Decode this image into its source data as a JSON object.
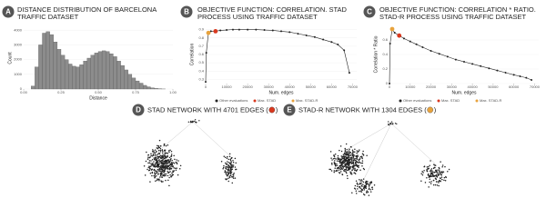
{
  "chart_data": [
    {
      "type": "histogram",
      "panel": "A",
      "title": [
        "DISTANCE DISTRIBUTION OF BARCELONA",
        "TRAFFIC DATASET"
      ],
      "x_label": "Distance",
      "y_label": "Count",
      "color": "#8c8c8c",
      "bins": [
        0.05,
        0.075,
        0.1,
        0.125,
        0.15,
        0.175,
        0.2,
        0.225,
        0.25,
        0.275,
        0.3,
        0.325,
        0.35,
        0.375,
        0.4,
        0.425,
        0.45,
        0.475,
        0.5,
        0.525,
        0.55,
        0.575,
        0.6,
        0.625,
        0.65,
        0.675,
        0.7,
        0.725,
        0.75,
        0.775,
        0.8,
        0.825,
        0.85,
        0.875,
        0.9,
        0.925,
        0.95
      ],
      "values": [
        200,
        1500,
        3000,
        3800,
        3900,
        3700,
        3200,
        2700,
        2300,
        2000,
        1700,
        1550,
        1500,
        1650,
        1900,
        2100,
        2300,
        2450,
        2550,
        2600,
        2550,
        2400,
        2200,
        1900,
        1600,
        1300,
        1000,
        750,
        550,
        400,
        250,
        150,
        80,
        40,
        15,
        5
      ],
      "xlim": [
        0,
        1
      ],
      "xticks": [
        {
          "value": 0,
          "label": "0.00"
        },
        {
          "value": 0.25,
          "label": "0.25"
        },
        {
          "value": 0.5,
          "label": "0.50"
        },
        {
          "value": 0.75,
          "label": "0.75"
        },
        {
          "value": 1,
          "label": "1.00"
        }
      ],
      "ylim": [
        0,
        4200
      ],
      "yticks": [
        0,
        1000,
        2000,
        3000,
        4000
      ]
    },
    {
      "type": "line",
      "panel": "B",
      "title": [
        "OBJECTIVE FUNCTION: CORRELATION. STAD",
        "PROCESS USING TRAFFIC DATASET"
      ],
      "x_label": "Num. edges",
      "y_label": "Correlation",
      "series": [
        {
          "name": "Other evaluations",
          "color": "#222222",
          "x": [
            0,
            300,
            1304,
            2500,
            4701,
            7000,
            10000,
            13000,
            16000,
            20000,
            24000,
            28000,
            32000,
            36000,
            40000,
            44000,
            48000,
            52000,
            56000,
            60000,
            63000,
            66000,
            68500
          ],
          "values": [
            0.27,
            0.62,
            0.86,
            0.88,
            0.88,
            0.89,
            0.895,
            0.9,
            0.9,
            0.9,
            0.9,
            0.895,
            0.89,
            0.88,
            0.87,
            0.85,
            0.83,
            0.81,
            0.78,
            0.75,
            0.72,
            0.65,
            0.38
          ]
        },
        {
          "name": "Max. STAD",
          "color": "#d9381e",
          "x": [
            4701
          ],
          "values": [
            0.88
          ]
        },
        {
          "name": "Max. STAD-R",
          "color": "#e8a33d",
          "x": [
            1304
          ],
          "values": [
            0.86
          ]
        }
      ],
      "xlim": [
        0,
        72000
      ],
      "xticks": [
        0,
        10000,
        20000,
        30000,
        40000,
        50000,
        60000,
        70000
      ],
      "ylim": [
        0.25,
        0.95
      ],
      "yticks": [
        0.3,
        0.4,
        0.5,
        0.6,
        0.7,
        0.8,
        0.9
      ]
    },
    {
      "type": "line",
      "panel": "C",
      "title": [
        "OBJECTIVE FUNCTION: CORRELATION * RATIO.",
        "STAD-R PROCESS USING TRAFFIC DATASET"
      ],
      "x_label": "Num. edges",
      "y_label": "Correlation * Ratio",
      "series": [
        {
          "name": "Other evaluations",
          "color": "#222222",
          "x": [
            0,
            300,
            1304,
            2500,
            4701,
            7000,
            10000,
            13000,
            16000,
            20000,
            24000,
            28000,
            32000,
            36000,
            40000,
            44000,
            48000,
            52000,
            56000,
            60000,
            63000,
            66000,
            68500
          ],
          "values": [
            0.0,
            0.55,
            0.75,
            0.7,
            0.66,
            0.62,
            0.58,
            0.54,
            0.5,
            0.45,
            0.41,
            0.37,
            0.33,
            0.3,
            0.27,
            0.24,
            0.21,
            0.18,
            0.15,
            0.12,
            0.1,
            0.08,
            0.05
          ]
        },
        {
          "name": "Max. STAD",
          "color": "#d9381e",
          "x": [
            4701
          ],
          "values": [
            0.66
          ]
        },
        {
          "name": "Max. STAD-R",
          "color": "#e8a33d",
          "x": [
            1304
          ],
          "values": [
            0.75
          ]
        }
      ],
      "xlim": [
        0,
        72000
      ],
      "xticks": [
        0,
        10000,
        20000,
        30000,
        40000,
        50000,
        60000,
        70000
      ],
      "ylim": [
        0,
        0.8
      ],
      "yticks": [
        0,
        0.2,
        0.4,
        0.6
      ]
    }
  ],
  "networks": [
    {
      "panel": "D",
      "title": "STAD NETWORK WITH 4701 EDGES (",
      "title_end": ")",
      "color": "#d9381e"
    },
    {
      "panel": "E",
      "title": "STAD-R NETWORK WITH 1304 EDGES (",
      "title_end": ")",
      "color": "#e8a33d"
    }
  ]
}
